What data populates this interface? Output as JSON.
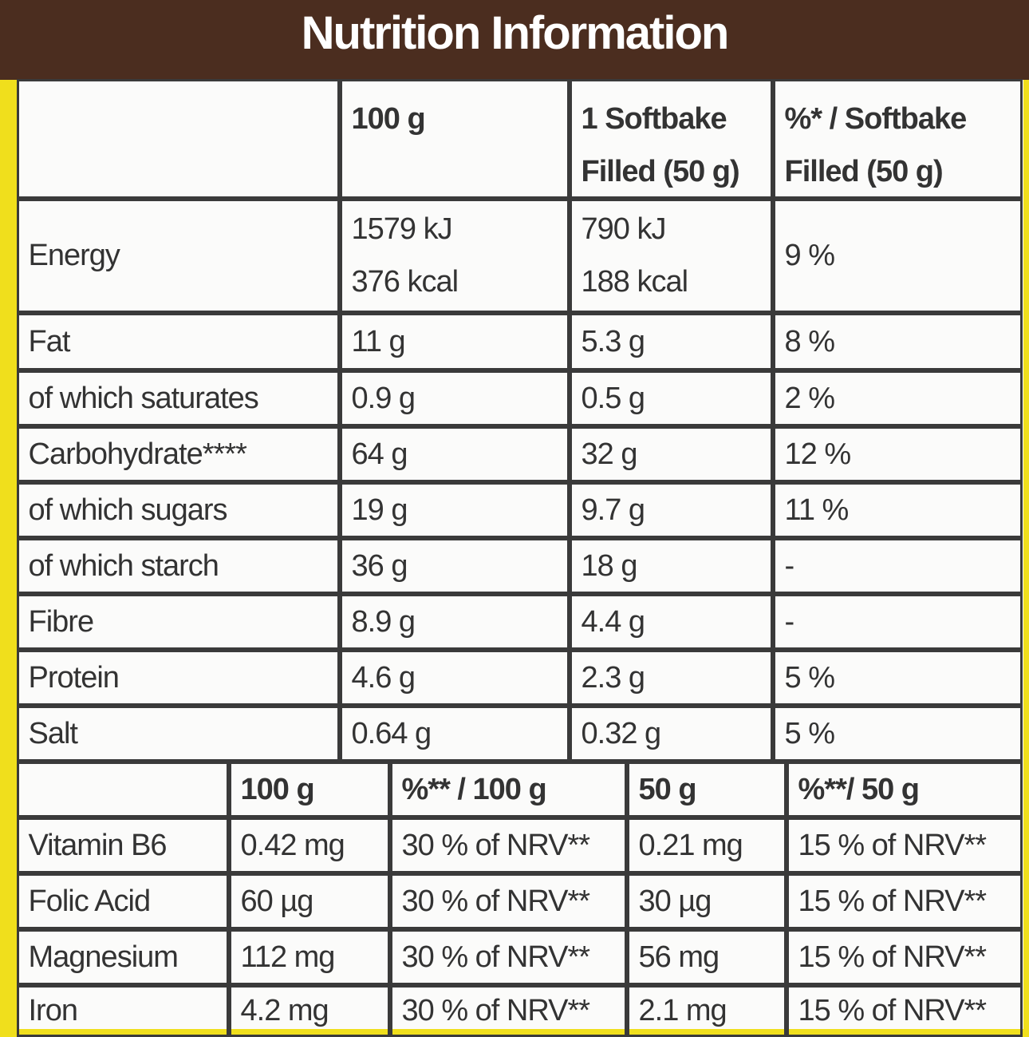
{
  "title": "Nutrition Information",
  "table": {
    "header": [
      "",
      "100 g",
      [
        "1 Softbake",
        "Filled (50 g)"
      ],
      [
        "%* / Softbake",
        "Filled (50 g)"
      ]
    ],
    "rows": [
      [
        "Energy",
        [
          "1579 kJ",
          "376 kcal"
        ],
        [
          "790 kJ",
          "188 kcal"
        ],
        "9 %"
      ],
      [
        "Fat",
        "11 g",
        "5.3 g",
        "8 %"
      ],
      [
        "of which saturates",
        "0.9 g",
        "0.5 g",
        "2 %"
      ],
      [
        "Carbohydrate****",
        "64 g",
        "32 g",
        "12 %"
      ],
      [
        "of which sugars",
        "19 g",
        "9.7 g",
        "11 %"
      ],
      [
        "of which starch",
        "36 g",
        "18 g",
        "-"
      ],
      [
        "Fibre",
        "8.9 g",
        "4.4 g",
        "-"
      ],
      [
        "Protein",
        "4.6 g",
        "2.3 g",
        "5 %"
      ],
      [
        "Salt",
        "0.64 g",
        "0.32 g",
        "5 %"
      ]
    ]
  },
  "vitamins": {
    "header": [
      "",
      "100 g",
      "%** / 100 g",
      "50 g",
      "%**/ 50 g"
    ],
    "rows": [
      [
        "Vitamin B6",
        "0.42 mg",
        "30 % of NRV**",
        "0.21 mg",
        "15 % of NRV**"
      ],
      [
        "Folic Acid",
        "60 µg",
        "30 % of NRV**",
        "30 µg",
        "15 % of NRV**"
      ],
      [
        "Magnesium",
        "112 mg",
        "30 % of NRV**",
        "56 mg",
        "15 % of NRV**"
      ],
      [
        "Iron",
        "4.2 mg",
        "30 % of NRV**",
        "2.1 mg",
        "15 % of NRV**"
      ]
    ]
  }
}
